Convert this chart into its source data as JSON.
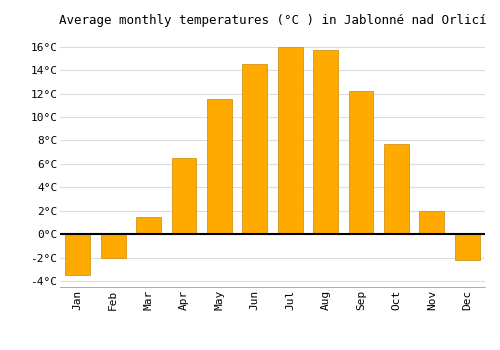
{
  "title": "Average monthly temperatures (°C ) in Jablonné nad Orlicí",
  "months": [
    "Jan",
    "Feb",
    "Mar",
    "Apr",
    "May",
    "Jun",
    "Jul",
    "Aug",
    "Sep",
    "Oct",
    "Nov",
    "Dec"
  ],
  "temperatures": [
    -3.5,
    -2.0,
    1.5,
    6.5,
    11.5,
    14.5,
    16.0,
    15.7,
    12.2,
    7.7,
    2.0,
    -2.2
  ],
  "bar_color": "#FFAA00",
  "ylim": [
    -4.5,
    17
  ],
  "yticks": [
    -4,
    -2,
    0,
    2,
    4,
    6,
    8,
    10,
    12,
    14,
    16
  ],
  "ytick_labels": [
    "-4°C",
    "-2°C",
    "0°C",
    "2°C",
    "4°C",
    "6°C",
    "8°C",
    "10°C",
    "12°C",
    "14°C",
    "16°C"
  ],
  "grid_color": "#dddddd",
  "background_color": "#ffffff",
  "title_fontsize": 9,
  "tick_fontsize": 8,
  "bar_edge_color": "#cc8800",
  "bar_linewidth": 0.5,
  "figsize": [
    5.0,
    3.5
  ],
  "dpi": 100
}
